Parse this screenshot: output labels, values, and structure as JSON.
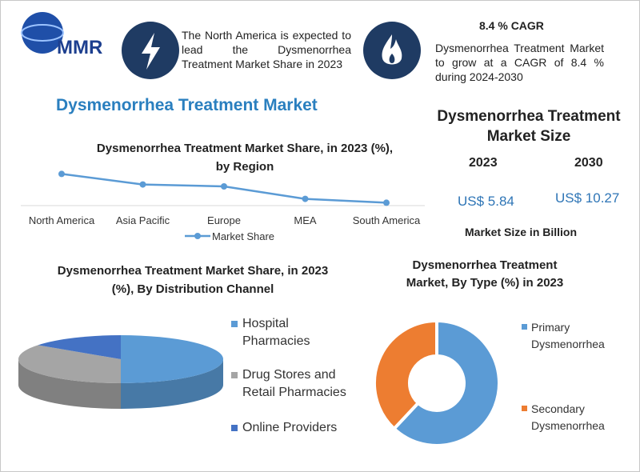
{
  "header": {
    "logo": "MMR",
    "note": "The North America is expected to lead the Dysmenorrhea Treatment Market Share in 2023",
    "cagr_title": "8.4 % CAGR",
    "cagr_text": "Dysmenorrhea Treatment Market to grow at a CAGR of 8.4 % during 2024-2030",
    "title": "Dysmenorrhea Treatment Market"
  },
  "market_size": {
    "title": "Dysmenorrhea Treatment Market Size",
    "years": [
      "2023",
      "2030"
    ],
    "values": [
      "US$ 5.84",
      "US$ 10.27"
    ],
    "caption": "Market Size in Billion"
  },
  "chart_data": [
    {
      "type": "line",
      "title": "Dysmenorrhea Treatment Market Share, in 2023 (%), by Region",
      "categories": [
        "North America",
        "Asia Pacific",
        "Europe",
        "MEA",
        "South America"
      ],
      "series": [
        {
          "name": "Market Share",
          "color": "#5b9bd5",
          "values": [
            38,
            27,
            25,
            12,
            8
          ]
        }
      ]
    },
    {
      "type": "pie3d",
      "title": "Dysmenorrhea Treatment Market Share, in 2023 (%), By Distribution Channel",
      "categories": [
        "Hospital Pharmacies",
        "Drug Stores and Retail Pharmacies",
        "Online Providers"
      ],
      "values": [
        50,
        35,
        15
      ],
      "colors": [
        "#5b9bd5",
        "#a5a5a5",
        "#4472c4"
      ]
    },
    {
      "type": "donut",
      "title": "Dysmenorrhea Treatment Market, By Type (%) in 2023",
      "categories": [
        "Primary Dysmenorrhea",
        "Secondary Dysmenorrhea"
      ],
      "values": [
        62,
        38
      ],
      "colors": [
        "#5b9bd5",
        "#ed7d31"
      ]
    }
  ]
}
